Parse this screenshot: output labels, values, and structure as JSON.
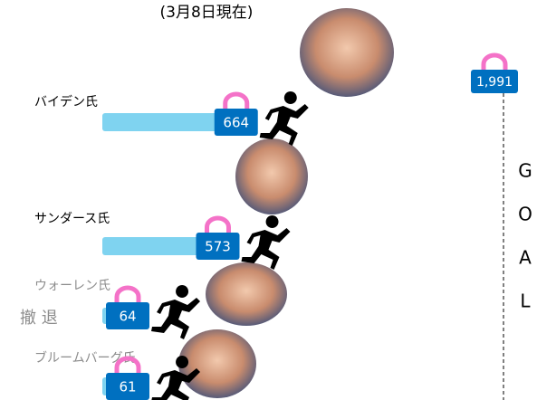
{
  "chart_data": {
    "type": "bar",
    "orientation": "horizontal",
    "subtitle": "(3月8日現在)",
    "categories": [
      "バイデン氏",
      "サンダース氏",
      "ウォーレン氏",
      "ブルームバーグ氏"
    ],
    "values": [
      664,
      573,
      64,
      61
    ],
    "label_colors": [
      "#000000",
      "#000000",
      "#8c8c8c",
      "#8c8c8c"
    ],
    "bar_color": "#7fd3f0",
    "box_color": "#0070c0",
    "handle_color": "#f472c8",
    "xlim": [
      0,
      1991
    ],
    "goal": {
      "value": 1991,
      "label": "1,991"
    },
    "goal_text": [
      "G",
      "O",
      "A",
      "L"
    ],
    "withdrawn_label": "撤 退"
  }
}
